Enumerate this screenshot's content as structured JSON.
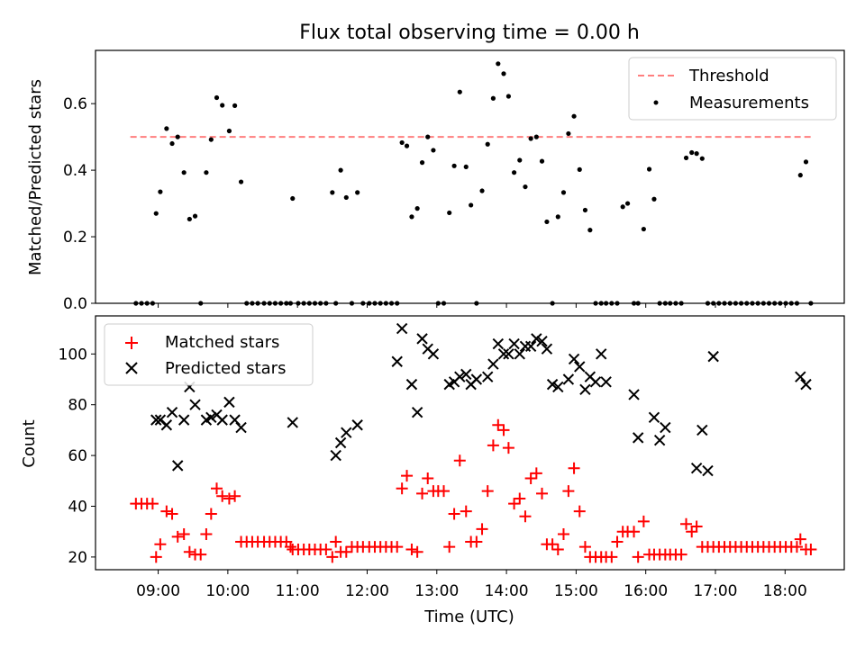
{
  "title": "Flux total observing time = 0.00 h",
  "chart_data": [
    {
      "type": "scatter",
      "title": "Flux total observing time = 0.00 h",
      "ylabel": "Matched/Predicted stars",
      "xlabel": "",
      "x_unit": "hours UTC",
      "xlim": [
        8.1,
        18.85
      ],
      "ylim": [
        0,
        0.76
      ],
      "yticks": [
        0.0,
        0.2,
        0.4,
        0.6
      ],
      "ytick_labels": [
        "0.0",
        "0.2",
        "0.4",
        "0.6"
      ],
      "grid": false,
      "legend_position": "upper right",
      "threshold": {
        "name": "Threshold",
        "value": 0.5,
        "x_range": [
          8.6,
          18.4
        ],
        "color": "#ff7f7f",
        "style": "dashed"
      },
      "series": [
        {
          "name": "Measurements",
          "marker": "dot",
          "color": "#000000",
          "x": [
            8.68,
            8.76,
            8.84,
            8.92,
            8.97,
            9.03,
            9.12,
            9.2,
            9.28,
            9.37,
            9.45,
            9.53,
            9.61,
            9.69,
            9.76,
            9.84,
            9.92,
            10.02,
            10.1,
            10.19,
            10.27,
            10.35,
            10.43,
            10.52,
            10.6,
            10.68,
            10.76,
            10.84,
            10.9,
            10.93,
            11.01,
            11.09,
            11.17,
            11.25,
            11.33,
            11.41,
            11.5,
            11.55,
            11.62,
            11.7,
            11.78,
            11.86,
            11.94,
            12.03,
            12.11,
            12.19,
            12.27,
            12.35,
            12.43,
            12.5,
            12.57,
            12.64,
            12.72,
            12.79,
            12.87,
            12.95,
            13.02,
            13.1,
            13.18,
            13.25,
            13.33,
            13.42,
            13.49,
            13.57,
            13.65,
            13.73,
            13.81,
            13.88,
            13.96,
            14.03,
            14.11,
            14.19,
            14.27,
            14.35,
            14.43,
            14.51,
            14.58,
            14.66,
            14.74,
            14.82,
            14.89,
            14.97,
            15.05,
            15.13,
            15.2,
            15.28,
            15.36,
            15.43,
            15.51,
            15.59,
            15.67,
            15.74,
            15.83,
            15.89,
            15.97,
            16.05,
            16.12,
            16.2,
            16.28,
            16.35,
            16.43,
            16.51,
            16.58,
            16.66,
            16.73,
            16.81,
            16.89,
            16.97,
            17.05,
            17.13,
            17.21,
            17.29,
            17.37,
            17.45,
            17.53,
            17.61,
            17.69,
            17.77,
            17.85,
            17.93,
            18.01,
            18.09,
            18.17,
            18.22,
            18.3,
            18.37
          ],
          "y": [
            0,
            0,
            0,
            0,
            0.27,
            0.335,
            0.525,
            0.48,
            0.5,
            0.393,
            0.253,
            0.262,
            0,
            0.393,
            0.492,
            0.618,
            0.595,
            0.518,
            0.594,
            0.365,
            0,
            0,
            0,
            0,
            0,
            0,
            0,
            0,
            0,
            0.315,
            0,
            0,
            0,
            0,
            0,
            0,
            0.333,
            0,
            0.4,
            0.318,
            0,
            0.333,
            0,
            0,
            0,
            0,
            0,
            0,
            0,
            0.483,
            0.473,
            0.26,
            0.285,
            0.423,
            0.5,
            0.46,
            0,
            0,
            0.272,
            0.413,
            0.635,
            0.41,
            0.295,
            0,
            0.338,
            0.478,
            0.616,
            0.72,
            0.69,
            0.622,
            0.393,
            0.43,
            0.35,
            0.495,
            0.5,
            0.427,
            0.245,
            0,
            0.26,
            0.333,
            0.51,
            0.562,
            0.402,
            0.28,
            0.22,
            0,
            0,
            0,
            0,
            0,
            0.29,
            0.3,
            0,
            0,
            0.223,
            0.403,
            0.313,
            0,
            0,
            0,
            0,
            0,
            0.437,
            0.453,
            0.45,
            0.435,
            0,
            0,
            0,
            0,
            0,
            0,
            0,
            0,
            0,
            0,
            0,
            0,
            0,
            0,
            0,
            0,
            0,
            0.385,
            0.425,
            0
          ]
        }
      ]
    },
    {
      "type": "scatter",
      "title": "",
      "ylabel": "Count",
      "xlabel": "Time (UTC)",
      "x_unit": "hours UTC",
      "xlim": [
        8.1,
        18.85
      ],
      "ylim": [
        15,
        115
      ],
      "yticks": [
        20,
        40,
        60,
        80,
        100
      ],
      "ytick_labels": [
        "20",
        "40",
        "60",
        "80",
        "100"
      ],
      "xticks": [
        9,
        10,
        11,
        12,
        13,
        14,
        15,
        16,
        17,
        18
      ],
      "xtick_labels": [
        "09:00",
        "10:00",
        "11:00",
        "12:00",
        "13:00",
        "14:00",
        "15:00",
        "16:00",
        "17:00",
        "18:00"
      ],
      "grid": false,
      "legend_position": "upper left",
      "series": [
        {
          "name": "Matched stars",
          "marker": "plus",
          "color": "#ff0000",
          "x": [
            8.68,
            8.76,
            8.84,
            8.92,
            8.97,
            9.03,
            9.12,
            9.2,
            9.28,
            9.37,
            9.45,
            9.53,
            9.61,
            9.69,
            9.76,
            9.84,
            9.92,
            10.02,
            10.1,
            10.19,
            10.27,
            10.35,
            10.43,
            10.52,
            10.6,
            10.68,
            10.76,
            10.84,
            10.9,
            10.93,
            11.01,
            11.09,
            11.17,
            11.25,
            11.33,
            11.41,
            11.5,
            11.55,
            11.62,
            11.7,
            11.78,
            11.86,
            11.94,
            12.03,
            12.11,
            12.19,
            12.27,
            12.35,
            12.43,
            12.5,
            12.57,
            12.64,
            12.72,
            12.79,
            12.87,
            12.95,
            13.02,
            13.1,
            13.18,
            13.25,
            13.33,
            13.42,
            13.49,
            13.57,
            13.65,
            13.73,
            13.81,
            13.88,
            13.96,
            14.03,
            14.11,
            14.19,
            14.27,
            14.35,
            14.43,
            14.51,
            14.58,
            14.66,
            14.74,
            14.82,
            14.89,
            14.97,
            15.05,
            15.13,
            15.2,
            15.28,
            15.36,
            15.43,
            15.51,
            15.59,
            15.67,
            15.74,
            15.83,
            15.89,
            15.97,
            16.05,
            16.12,
            16.2,
            16.28,
            16.35,
            16.43,
            16.51,
            16.58,
            16.66,
            16.73,
            16.81,
            16.89,
            16.97,
            17.05,
            17.13,
            17.21,
            17.29,
            17.37,
            17.45,
            17.53,
            17.61,
            17.69,
            17.77,
            17.85,
            17.93,
            18.01,
            18.09,
            18.17,
            18.22,
            18.3,
            18.37
          ],
          "y": [
            41,
            41,
            41,
            41,
            20,
            25,
            38,
            37,
            28,
            29,
            22,
            21,
            21,
            29,
            37,
            47,
            44,
            43,
            44,
            26,
            26,
            26,
            26,
            26,
            26,
            26,
            26,
            26,
            24,
            23,
            23,
            23,
            23,
            23,
            23,
            23,
            20,
            26,
            22,
            22,
            24,
            24,
            24,
            24,
            24,
            24,
            24,
            24,
            24,
            47,
            52,
            23,
            22,
            45,
            51,
            46,
            46,
            46,
            24,
            37,
            58,
            38,
            26,
            26,
            31,
            46,
            64,
            72,
            70,
            63,
            41,
            43,
            36,
            51,
            53,
            45,
            25,
            25,
            23,
            29,
            46,
            55,
            38,
            24,
            20,
            20,
            20,
            20,
            20,
            26,
            30,
            30,
            30,
            20,
            34,
            21,
            21,
            21,
            21,
            21,
            21,
            21,
            33,
            30,
            32,
            24,
            24,
            24,
            24,
            24,
            24,
            24,
            24,
            24,
            24,
            24,
            24,
            24,
            24,
            24,
            24,
            24,
            24,
            27,
            23,
            23
          ]
        },
        {
          "name": "Predicted stars",
          "marker": "x",
          "color": "#000000",
          "x": [
            8.97,
            9.03,
            9.12,
            9.2,
            9.28,
            9.37,
            9.45,
            9.53,
            9.69,
            9.76,
            9.84,
            9.92,
            10.02,
            10.1,
            10.19,
            10.93,
            11.55,
            11.62,
            11.7,
            11.86,
            12.43,
            12.5,
            12.64,
            12.72,
            12.79,
            12.87,
            12.95,
            13.18,
            13.25,
            13.33,
            13.42,
            13.49,
            13.57,
            13.73,
            13.81,
            13.88,
            13.96,
            14.03,
            14.11,
            14.19,
            14.27,
            14.35,
            14.43,
            14.51,
            14.58,
            14.66,
            14.74,
            14.89,
            14.97,
            15.05,
            15.13,
            15.2,
            15.28,
            15.36,
            15.43,
            15.83,
            15.89,
            16.12,
            16.2,
            16.28,
            16.73,
            16.81,
            16.89,
            16.97,
            18.22,
            18.3
          ],
          "y": [
            74,
            74,
            72,
            77,
            56,
            74,
            87,
            80,
            74,
            75,
            76,
            74,
            81,
            74,
            71,
            73,
            60,
            65,
            69,
            72,
            97,
            110,
            88,
            77,
            106,
            102,
            100,
            88,
            89,
            91,
            92,
            88,
            90,
            91,
            96,
            104,
            100,
            100,
            104,
            100,
            103,
            103,
            106,
            105,
            102,
            88,
            87,
            90,
            98,
            95,
            86,
            91,
            89,
            100,
            89,
            84,
            67,
            75,
            66,
            71,
            55,
            70,
            54,
            99,
            91,
            88
          ]
        }
      ]
    }
  ]
}
